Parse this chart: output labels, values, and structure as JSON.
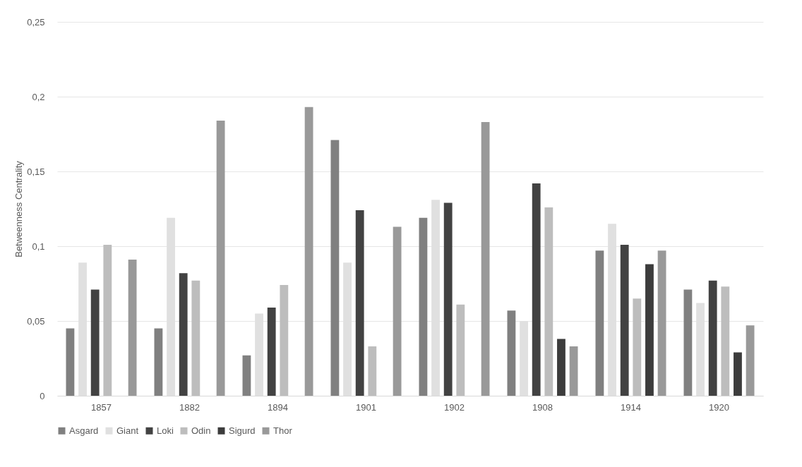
{
  "chart_data": {
    "type": "bar",
    "ylabel": "Betweenness Centrality",
    "categories": [
      "1857",
      "1882",
      "1894",
      "1901",
      "1902",
      "1908",
      "1914",
      "1920"
    ],
    "series": [
      {
        "name": "Asgard",
        "color": "#808080",
        "values": [
          0.045,
          0.045,
          0.027,
          0.171,
          0.119,
          0.057,
          0.097,
          0.071
        ]
      },
      {
        "name": "Giant",
        "color": "#e0e0e0",
        "values": [
          0.089,
          0.119,
          0.055,
          0.089,
          0.131,
          0.05,
          0.115,
          0.062
        ]
      },
      {
        "name": "Loki",
        "color": "#424242",
        "values": [
          0.071,
          0.082,
          0.059,
          0.124,
          0.129,
          0.142,
          0.101,
          0.077
        ]
      },
      {
        "name": "Odin",
        "color": "#bdbdbd",
        "values": [
          0.101,
          0.077,
          0.074,
          0.033,
          0.061,
          0.126,
          0.065,
          0.073
        ]
      },
      {
        "name": "Sigurd",
        "color": "#3c3c3c",
        "values": [
          null,
          null,
          null,
          null,
          null,
          0.038,
          0.088,
          0.029
        ]
      },
      {
        "name": "Thor",
        "color": "#999999",
        "values": [
          0.091,
          0.184,
          0.193,
          0.113,
          0.183,
          0.033,
          0.097,
          0.047
        ]
      }
    ],
    "ylim": [
      0,
      0.25
    ],
    "yticks": [
      0,
      {
        "value": 0.05,
        "label": "0,05"
      },
      {
        "value": 0.1,
        "label": "0,1"
      },
      {
        "value": 0.15,
        "label": "0,15"
      },
      {
        "value": 0.2,
        "label": "0,2"
      },
      {
        "value": 0.25,
        "label": "0,25"
      }
    ],
    "grid": "y",
    "legend": "bottom"
  }
}
